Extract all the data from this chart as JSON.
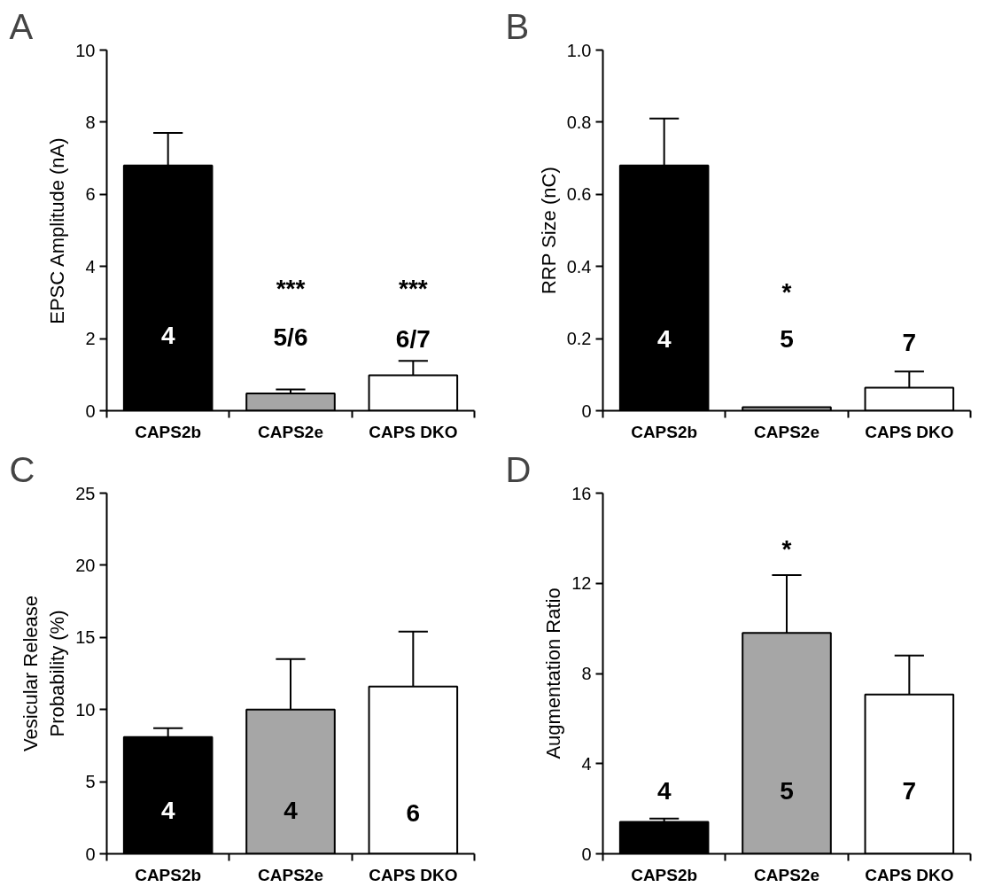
{
  "chart_data": [
    {
      "type": "bar",
      "title": "A",
      "ylabel": "EPSC Amplitude (nA)",
      "categories": [
        "CAPS2b",
        "CAPS2e",
        "CAPS DKO"
      ],
      "values": [
        6.8,
        0.48,
        0.98
      ],
      "colors": [
        "#000000",
        "#a6a6a6",
        "#ffffff"
      ],
      "errors": [
        [
          6.8,
          7.7
        ],
        [
          0.48,
          0.59
        ],
        [
          0.98,
          1.38
        ]
      ],
      "ylim": [
        0,
        10
      ],
      "yticks": [
        0,
        2,
        4,
        6,
        8,
        10
      ],
      "grid": false,
      "annotations": [
        "4",
        "***",
        "5/6",
        "***",
        "6/7"
      ]
    },
    {
      "type": "bar",
      "title": "B",
      "ylabel": "RRP Size (nC)",
      "categories": [
        "CAPS2b",
        "CAPS2e",
        "CAPS DKO"
      ],
      "values": [
        0.68,
        0.01,
        0.064
      ],
      "colors": [
        "#000000",
        "#a6a6a6",
        "#ffffff"
      ],
      "errors": [
        [
          0.68,
          0.81
        ],
        null,
        [
          0.064,
          0.109
        ]
      ],
      "ylim": [
        0,
        1
      ],
      "yticks": [
        0,
        0.2,
        0.4,
        0.6,
        0.8,
        {
          "value": 1,
          "label": "1.0"
        }
      ],
      "grid": false,
      "annotations": [
        "4",
        "*",
        "5",
        "7"
      ]
    },
    {
      "type": "bar",
      "title": "C",
      "ylabel": "Vesicular Release\nProbability (%)",
      "categories": [
        "CAPS2b",
        "CAPS2e",
        "CAPS DKO"
      ],
      "values": [
        8.1,
        10.0,
        11.6
      ],
      "colors": [
        "#000000",
        "#a6a6a6",
        "#ffffff"
      ],
      "errors": [
        [
          8.1,
          8.7
        ],
        [
          10.0,
          13.5
        ],
        [
          11.6,
          15.4
        ]
      ],
      "ylim": [
        0,
        25
      ],
      "yticks": [
        0,
        5,
        10,
        15,
        20,
        25
      ],
      "grid": false,
      "annotations": [
        "4",
        "4",
        "6"
      ]
    },
    {
      "type": "bar",
      "title": "D",
      "ylabel": "Augmentation Ratio",
      "categories": [
        "CAPS2b",
        "CAPS2e",
        "CAPS DKO"
      ],
      "values": [
        1.42,
        9.8,
        7.07
      ],
      "colors": [
        "#000000",
        "#a6a6a6",
        "#ffffff"
      ],
      "errors": [
        [
          1.42,
          1.56
        ],
        [
          9.8,
          12.36
        ],
        [
          7.07,
          8.8
        ]
      ],
      "ylim": [
        0,
        16
      ],
      "yticks": [
        0,
        4,
        8,
        12,
        16
      ],
      "grid": false,
      "annotations": [
        "4",
        "*",
        "5",
        "7"
      ]
    }
  ]
}
